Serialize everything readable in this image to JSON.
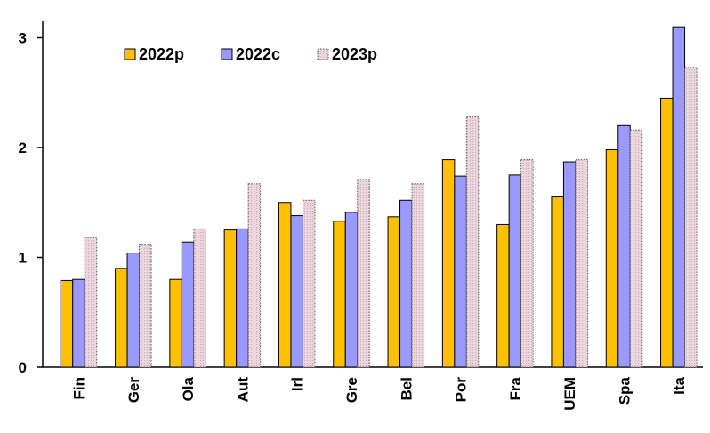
{
  "chart_data": {
    "type": "bar",
    "title": "",
    "xlabel": "",
    "ylabel": "",
    "ylim": [
      0,
      3.15
    ],
    "yticks": [
      "0",
      "1",
      "2",
      "3"
    ],
    "grid": false,
    "legend_position": "top-left",
    "categories": [
      "Fin",
      "Ger",
      "Ola",
      "Aut",
      "Irl",
      "Gre",
      "Bel",
      "Por",
      "Fra",
      "UEM",
      "Spa",
      "Ita"
    ],
    "series": [
      {
        "name": "2022p",
        "color": "#FFC000",
        "values": [
          0.79,
          0.9,
          0.8,
          1.25,
          1.5,
          1.33,
          1.37,
          1.89,
          1.3,
          1.55,
          1.98,
          2.45
        ]
      },
      {
        "name": "2022c",
        "color": "#9999FF",
        "values": [
          0.8,
          1.04,
          1.14,
          1.26,
          1.38,
          1.41,
          1.52,
          1.74,
          1.75,
          1.87,
          2.2,
          3.1
        ]
      },
      {
        "name": "2023p",
        "color": "#E8CCD6",
        "values": [
          1.18,
          1.12,
          1.26,
          1.67,
          1.52,
          1.71,
          1.67,
          2.28,
          1.89,
          1.89,
          2.16,
          2.73
        ]
      }
    ]
  }
}
